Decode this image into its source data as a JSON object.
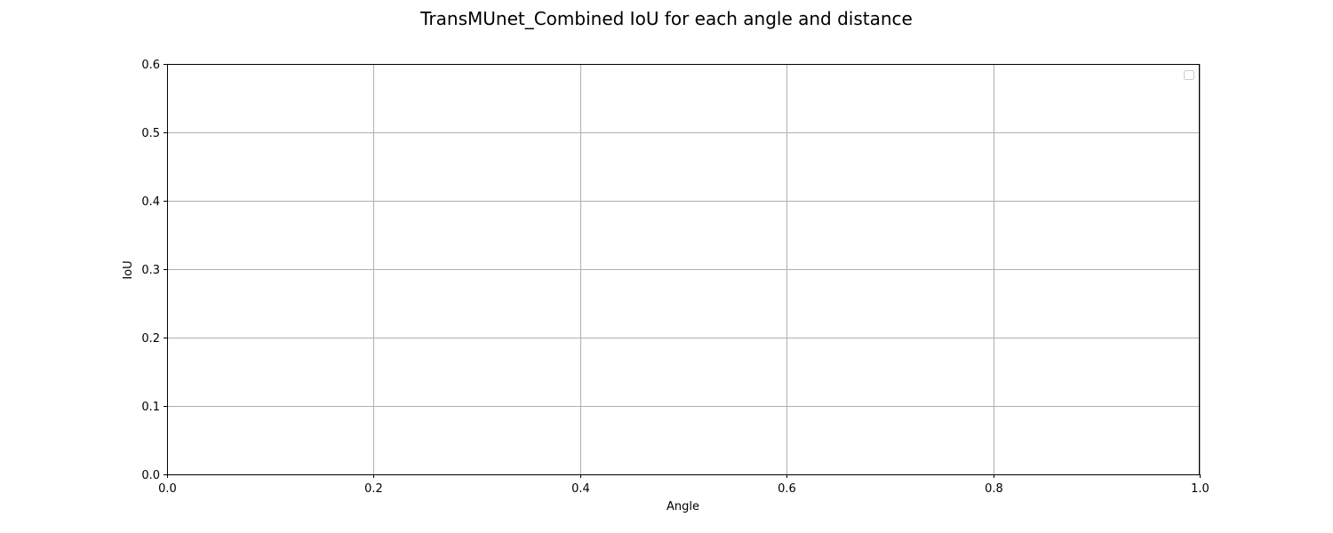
{
  "chart_data": {
    "type": "line",
    "title": "TransMUnet_Combined IoU for each angle and distance",
    "xlabel": "Angle",
    "ylabel": "IoU",
    "xlim": [
      0.0,
      1.0
    ],
    "ylim": [
      0.0,
      0.6
    ],
    "x_ticks": [
      "0.0",
      "0.2",
      "0.4",
      "0.6",
      "0.8",
      "1.0"
    ],
    "y_ticks": [
      "0.0",
      "0.1",
      "0.2",
      "0.3",
      "0.4",
      "0.5",
      "0.6"
    ],
    "grid": true,
    "legend": "top-right",
    "series": []
  }
}
